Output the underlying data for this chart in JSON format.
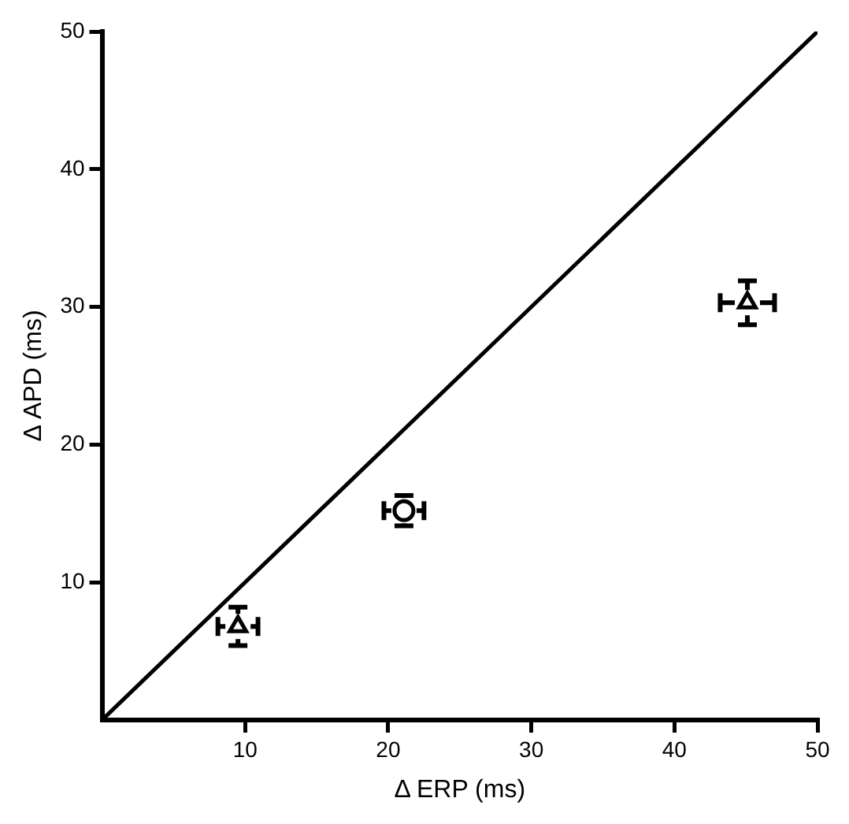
{
  "chart_data": {
    "type": "scatter",
    "xlabel": "Δ ERP (ms)",
    "ylabel": "Δ APD (ms)",
    "xlim": [
      0,
      50
    ],
    "ylim": [
      0,
      50
    ],
    "xticks": [
      10,
      20,
      30,
      40,
      50
    ],
    "yticks": [
      10,
      20,
      30,
      40,
      50
    ],
    "grid": false,
    "legend": false,
    "series": [
      {
        "marker": "triangle",
        "color": "#000000",
        "x": [
          9.5
        ],
        "values": [
          6.8
        ],
        "errors": [
          1.4
        ],
        "xerrors": [
          1.4
        ]
      },
      {
        "color": "#000000",
        "x": [
          21.1
        ],
        "values": [
          15.2
        ],
        "errors": [
          1.1
        ],
        "xerrors": [
          1.4
        ]
      },
      {
        "marker": "triangle",
        "color": "#000000",
        "x": [
          45.1
        ],
        "values": [
          30.3
        ],
        "errors": [
          1.6
        ],
        "xerrors": [
          1.9
        ]
      },
      {
        "type": "line",
        "color": "#000000",
        "x": [
          0,
          50
        ],
        "values": [
          0,
          50
        ],
        "marker": "none"
      }
    ]
  }
}
